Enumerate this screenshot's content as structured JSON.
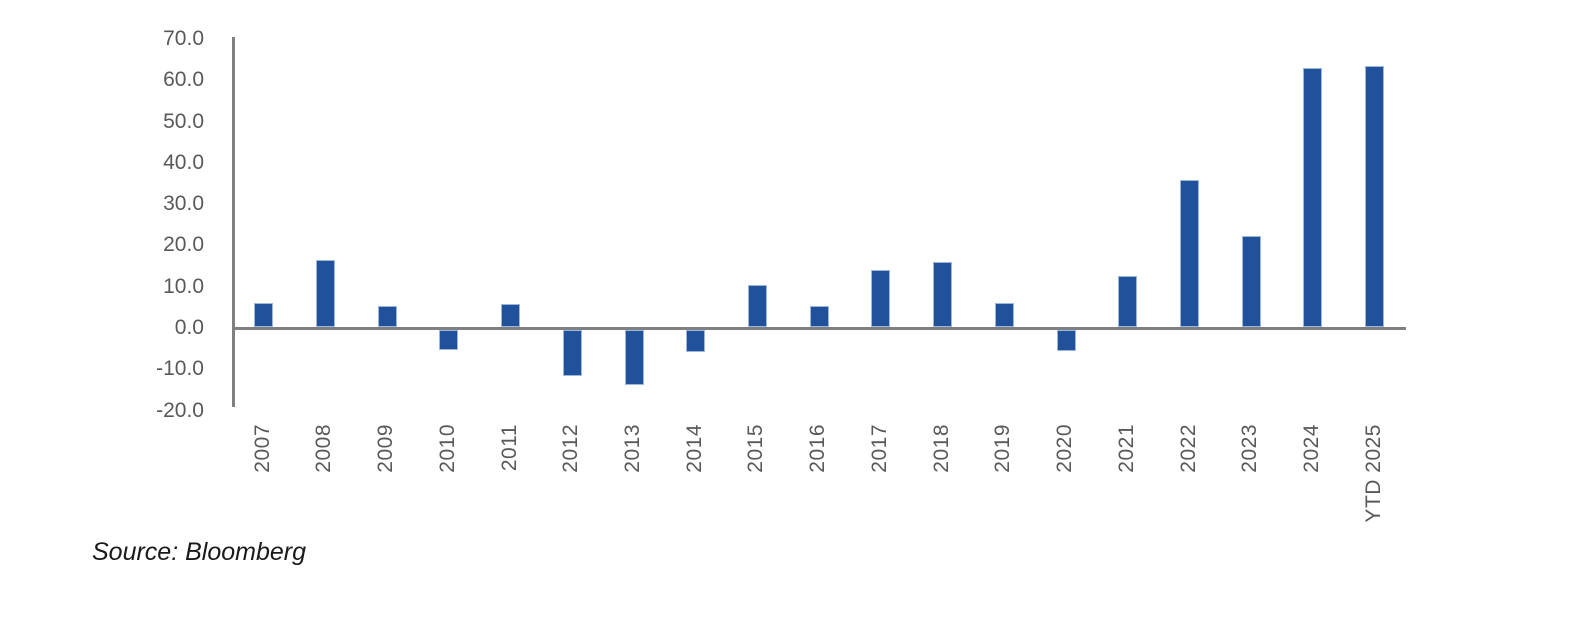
{
  "source": {
    "text": "Source: Bloomberg"
  },
  "chart_data": {
    "type": "bar",
    "title": "",
    "xlabel": "",
    "ylabel": "",
    "categories": [
      "2007",
      "2008",
      "2009",
      "2010",
      "2011",
      "2012",
      "2013",
      "2014",
      "2015",
      "2016",
      "2017",
      "2018",
      "2019",
      "2020",
      "2021",
      "2022",
      "2023",
      "2024",
      "YTD 2025"
    ],
    "values": [
      6.0,
      16.5,
      5.4,
      -4.8,
      5.9,
      -11.1,
      -13.2,
      -5.3,
      10.3,
      5.3,
      14.0,
      15.9,
      6.0,
      -5.1,
      12.5,
      35.8,
      22.3,
      62.9,
      63.4
    ],
    "ylim": [
      -20,
      70
    ],
    "ytick_labels": [
      "70.0",
      "60.0",
      "50.0",
      "40.0",
      "30.0",
      "20.0",
      "10.0",
      "0.0",
      "-10.0",
      "-20.0"
    ],
    "grid": false,
    "legend_position": "none",
    "colors": {
      "bar_fill": "#21519A",
      "bar_border": "#9DB6DC",
      "axis_line": "#808080",
      "tick_text": "#595959"
    }
  }
}
